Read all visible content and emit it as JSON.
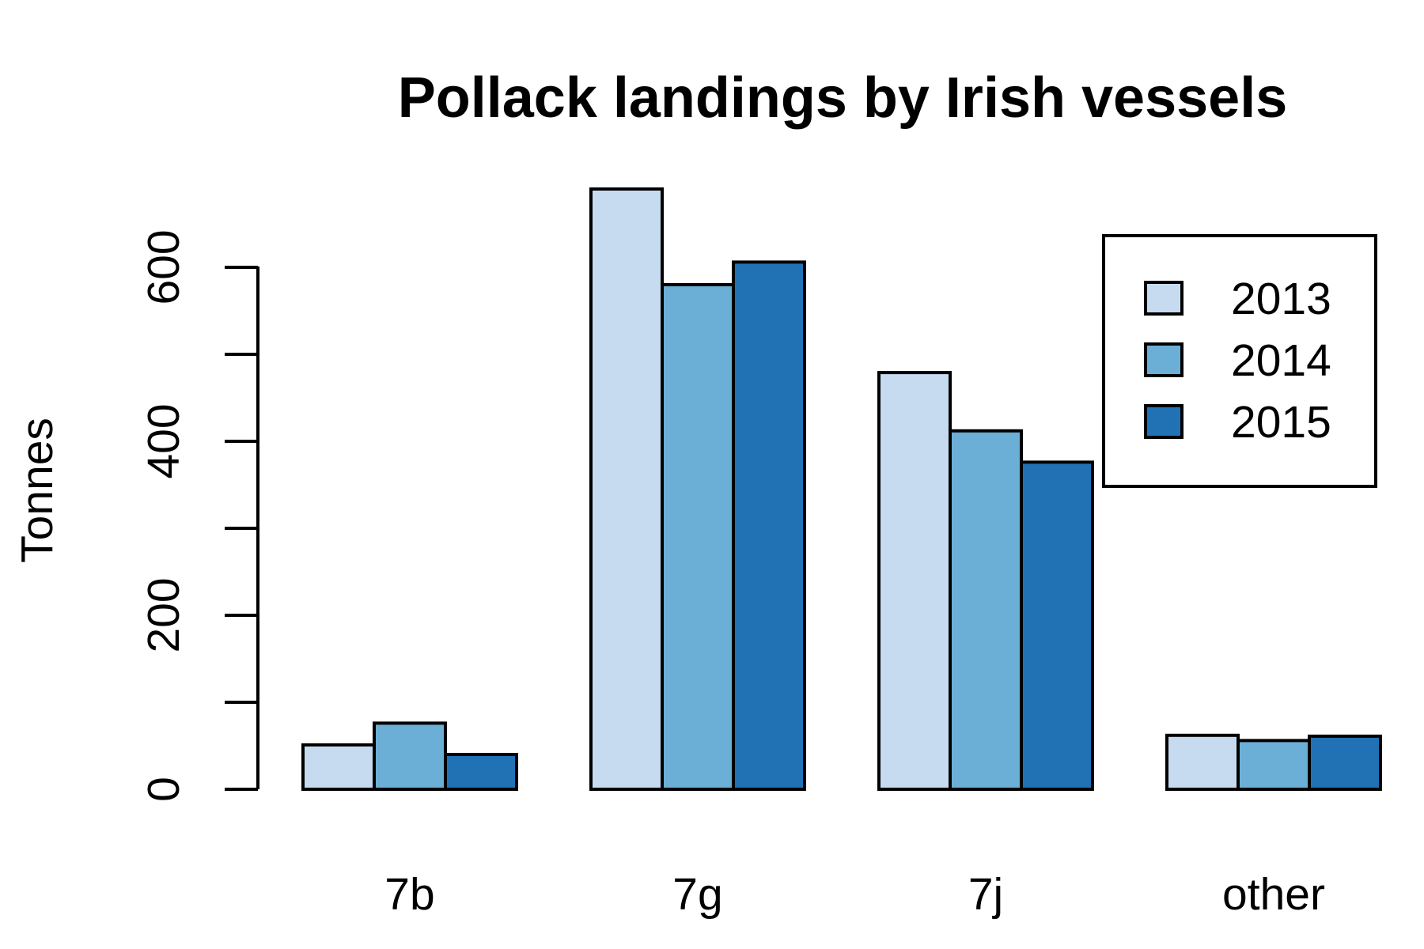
{
  "chart_data": {
    "type": "bar",
    "title": "Pollack landings by Irish vessels",
    "xlabel": "",
    "ylabel": "Tonnes",
    "categories": [
      "7b",
      "7g",
      "7j",
      "other"
    ],
    "series": [
      {
        "name": "2013",
        "color": "#c6dbef",
        "values": [
          51,
          690,
          479,
          62
        ]
      },
      {
        "name": "2014",
        "color": "#6baed6",
        "values": [
          76,
          580,
          412,
          56
        ]
      },
      {
        "name": "2015",
        "color": "#2171b5",
        "values": [
          40,
          606,
          376,
          61
        ]
      }
    ],
    "yticks": [
      0,
      200,
      400,
      600
    ],
    "yticks_unlabeled": [
      100,
      300,
      500
    ],
    "ylim": [
      0,
      720
    ],
    "grid": false,
    "legend_position": "top-right"
  }
}
